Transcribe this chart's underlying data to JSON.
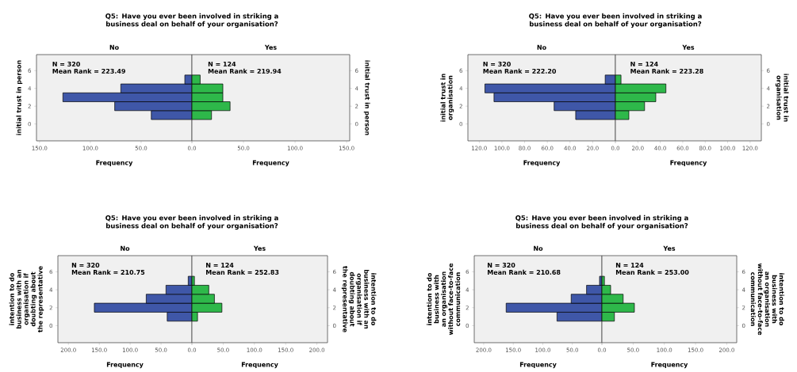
{
  "chart_data": [
    {
      "type": "histogram",
      "orientation": "horizontal",
      "title": "Q5: Have you ever been involved in striking a business deal on behalf of your organisation?",
      "subtitle": "No",
      "color": "#3f57a8",
      "bins": [
        0.5,
        1.5,
        2.5,
        3.5,
        4.5,
        5.5
      ],
      "values": [
        40,
        76,
        127,
        70,
        7
      ],
      "xlabel": "Frequency",
      "ylabel": "initial trust in person",
      "annotations": [
        "N = 320",
        "Mean Rank = 223.49"
      ],
      "xlim": [
        153,
        0
      ],
      "ylim": [
        -1.9,
        7.8
      ],
      "xticks": [
        {
          "value": 150,
          "label": "150.0"
        },
        {
          "value": 100,
          "label": "100.0"
        },
        {
          "value": 50,
          "label": "50.0"
        },
        {
          "value": 0,
          "label": "0.0"
        }
      ],
      "yticks": [
        0,
        2,
        4,
        6
      ]
    },
    {
      "type": "histogram",
      "orientation": "horizontal",
      "subtitle": "Yes",
      "color": "#2eb84a",
      "bins": [
        0.5,
        1.5,
        2.5,
        3.5,
        4.5,
        5.5
      ],
      "values": [
        19,
        37,
        30,
        30,
        8
      ],
      "xlabel": "Frequency",
      "ylabel": "initial trust in person",
      "annotations": [
        "N = 124",
        "Mean Rank = 219.94"
      ],
      "xlim": [
        0,
        153
      ],
      "ylim": [
        -1.9,
        7.8
      ],
      "xticks": [
        {
          "value": 0,
          "label": null
        },
        {
          "value": 50,
          "label": "50.0"
        },
        {
          "value": 100,
          "label": "100.0"
        },
        {
          "value": 150,
          "label": "150.0"
        }
      ],
      "yticks": [
        0,
        2,
        4,
        6
      ]
    },
    {
      "type": "histogram",
      "orientation": "horizontal",
      "title": "Q5: Have you ever been involved in striking a business deal on behalf of your organisation?",
      "subtitle": "No",
      "color": "#3f57a8",
      "bins": [
        0.5,
        1.5,
        2.5,
        3.5,
        4.5,
        5.5
      ],
      "values": [
        35,
        54,
        107,
        115,
        9
      ],
      "xlabel": "Frequency",
      "ylabel": "initial trust in organisation",
      "annotations": [
        "N = 320",
        "Mean Rank = 222.20"
      ],
      "xlim": [
        130,
        0
      ],
      "ylim": [
        -1.9,
        7.8
      ],
      "xticks": [
        {
          "value": 120,
          "label": "120.0"
        },
        {
          "value": 100,
          "label": "100.0"
        },
        {
          "value": 80,
          "label": "80.0"
        },
        {
          "value": 60,
          "label": "60.0"
        },
        {
          "value": 40,
          "label": "40.0"
        },
        {
          "value": 20,
          "label": "20.0"
        },
        {
          "value": 0,
          "label": "0.0"
        }
      ],
      "yticks": [
        0,
        2,
        4,
        6
      ]
    },
    {
      "type": "histogram",
      "orientation": "horizontal",
      "subtitle": "Yes",
      "color": "#2eb84a",
      "bins": [
        0.5,
        1.5,
        2.5,
        3.5,
        4.5,
        5.5
      ],
      "values": [
        12,
        26,
        36,
        45,
        5
      ],
      "xlabel": "Frequency",
      "ylabel": "initial trust in organisation",
      "annotations": [
        "N = 124",
        "Mean Rank = 223.28"
      ],
      "xlim": [
        0,
        130
      ],
      "ylim": [
        -1.9,
        7.8
      ],
      "xticks": [
        {
          "value": 0,
          "label": null
        },
        {
          "value": 20,
          "label": "20.0"
        },
        {
          "value": 40,
          "label": "40.0"
        },
        {
          "value": 60,
          "label": "60.0"
        },
        {
          "value": 80,
          "label": "80.0"
        },
        {
          "value": 100,
          "label": "100.0"
        },
        {
          "value": 120,
          "label": "120.0"
        }
      ],
      "yticks": [
        0,
        2,
        4,
        6
      ]
    },
    {
      "type": "histogram",
      "orientation": "horizontal",
      "title": "Q5: Have you ever been involved in striking a business deal on behalf of your organisation?",
      "subtitle": "No",
      "color": "#3f57a8",
      "bins": [
        0.5,
        1.5,
        2.5,
        3.5,
        4.5,
        5.5
      ],
      "values": [
        40,
        158,
        74,
        42,
        6
      ],
      "xlabel": "Frequency",
      "ylabel": "intention to do business with an organisation if doubting about the representative",
      "annotations": [
        "N = 320",
        "Mean Rank = 210.75"
      ],
      "xlim": [
        217,
        0
      ],
      "ylim": [
        -1.9,
        7.8
      ],
      "xticks": [
        {
          "value": 200,
          "label": "200.0"
        },
        {
          "value": 150,
          "label": "150.0"
        },
        {
          "value": 100,
          "label": "100.0"
        },
        {
          "value": 50,
          "label": "50.0"
        },
        {
          "value": 0,
          "label": "0.0"
        }
      ],
      "yticks": [
        0,
        2,
        4,
        6
      ]
    },
    {
      "type": "histogram",
      "orientation": "horizontal",
      "subtitle": "Yes",
      "color": "#2eb84a",
      "bins": [
        0.5,
        1.5,
        2.5,
        3.5,
        4.5,
        5.5
      ],
      "values": [
        9,
        48,
        36,
        27,
        4
      ],
      "xlabel": "Frequency",
      "ylabel": "intention to do business with an organisation if doubting about the representative",
      "annotations": [
        "N = 124",
        "Mean Rank = 252.83"
      ],
      "xlim": [
        0,
        217
      ],
      "ylim": [
        -1.9,
        7.8
      ],
      "xticks": [
        {
          "value": 0,
          "label": null
        },
        {
          "value": 50,
          "label": "50.0"
        },
        {
          "value": 100,
          "label": "100.0"
        },
        {
          "value": 150,
          "label": "150.0"
        },
        {
          "value": 200,
          "label": "200.0"
        }
      ],
      "yticks": [
        0,
        2,
        4,
        6
      ]
    },
    {
      "type": "histogram",
      "orientation": "horizontal",
      "title": "Q5: Have you ever been involved in striking a business deal on behalf of your organisation?",
      "subtitle": "No",
      "color": "#3f57a8",
      "bins": [
        0.5,
        1.5,
        2.5,
        3.5,
        4.5,
        5.5
      ],
      "values": [
        76,
        162,
        52,
        26,
        4
      ],
      "xlabel": "Frequency",
      "ylabel": "intention to do business with an organisation without face-to-face communication",
      "annotations": [
        "N = 320",
        "Mean Rank = 210.68"
      ],
      "xlim": [
        216,
        0
      ],
      "ylim": [
        -1.9,
        7.8
      ],
      "xticks": [
        {
          "value": 200,
          "label": "200.0"
        },
        {
          "value": 150,
          "label": "150.0"
        },
        {
          "value": 100,
          "label": "100.0"
        },
        {
          "value": 50,
          "label": "50.0"
        },
        {
          "value": 0,
          "label": "0.0"
        }
      ],
      "yticks": [
        0,
        2,
        4,
        6
      ]
    },
    {
      "type": "histogram",
      "orientation": "horizontal",
      "subtitle": "Yes",
      "color": "#2eb84a",
      "bins": [
        0.5,
        1.5,
        2.5,
        3.5,
        4.5,
        5.5
      ],
      "values": [
        20,
        52,
        34,
        14,
        4
      ],
      "xlabel": "Frequency",
      "ylabel": "intention to do business with an organisation without face-to-face communication",
      "annotations": [
        "N = 124",
        "Mean Rank = 253.00"
      ],
      "xlim": [
        0,
        216
      ],
      "ylim": [
        -1.9,
        7.8
      ],
      "xticks": [
        {
          "value": 0,
          "label": null
        },
        {
          "value": 50,
          "label": "50.0"
        },
        {
          "value": 100,
          "label": "100.0"
        },
        {
          "value": 150,
          "label": "150.0"
        },
        {
          "value": 200,
          "label": "200.0"
        }
      ],
      "yticks": [
        0,
        2,
        4,
        6
      ]
    }
  ]
}
